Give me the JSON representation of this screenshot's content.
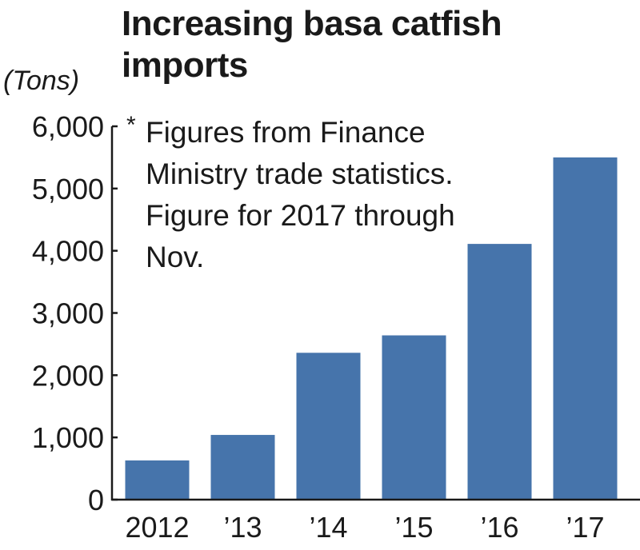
{
  "chart_data": {
    "type": "bar",
    "title_lines": [
      "Increasing basa catfish",
      "imports"
    ],
    "ylabel": "(Tons)",
    "xlabel": "",
    "categories": [
      "2012",
      "’13",
      "’14",
      "’15",
      "’16",
      "’17"
    ],
    "values": [
      630,
      1040,
      2360,
      2640,
      4110,
      5500
    ],
    "ylim": [
      0,
      6000
    ],
    "yticks": [
      0,
      1000,
      2000,
      3000,
      4000,
      5000,
      6000
    ],
    "ytick_labels": [
      "0",
      "1,000",
      "2,000",
      "3,000",
      "4,000",
      "5,000",
      "6,000"
    ],
    "grid": false,
    "bar_color": "#4674ab",
    "note_marker": "*",
    "note_lines": [
      "Figures from Finance",
      "Ministry trade statistics.",
      "Figure for 2017 through",
      "Nov."
    ]
  }
}
